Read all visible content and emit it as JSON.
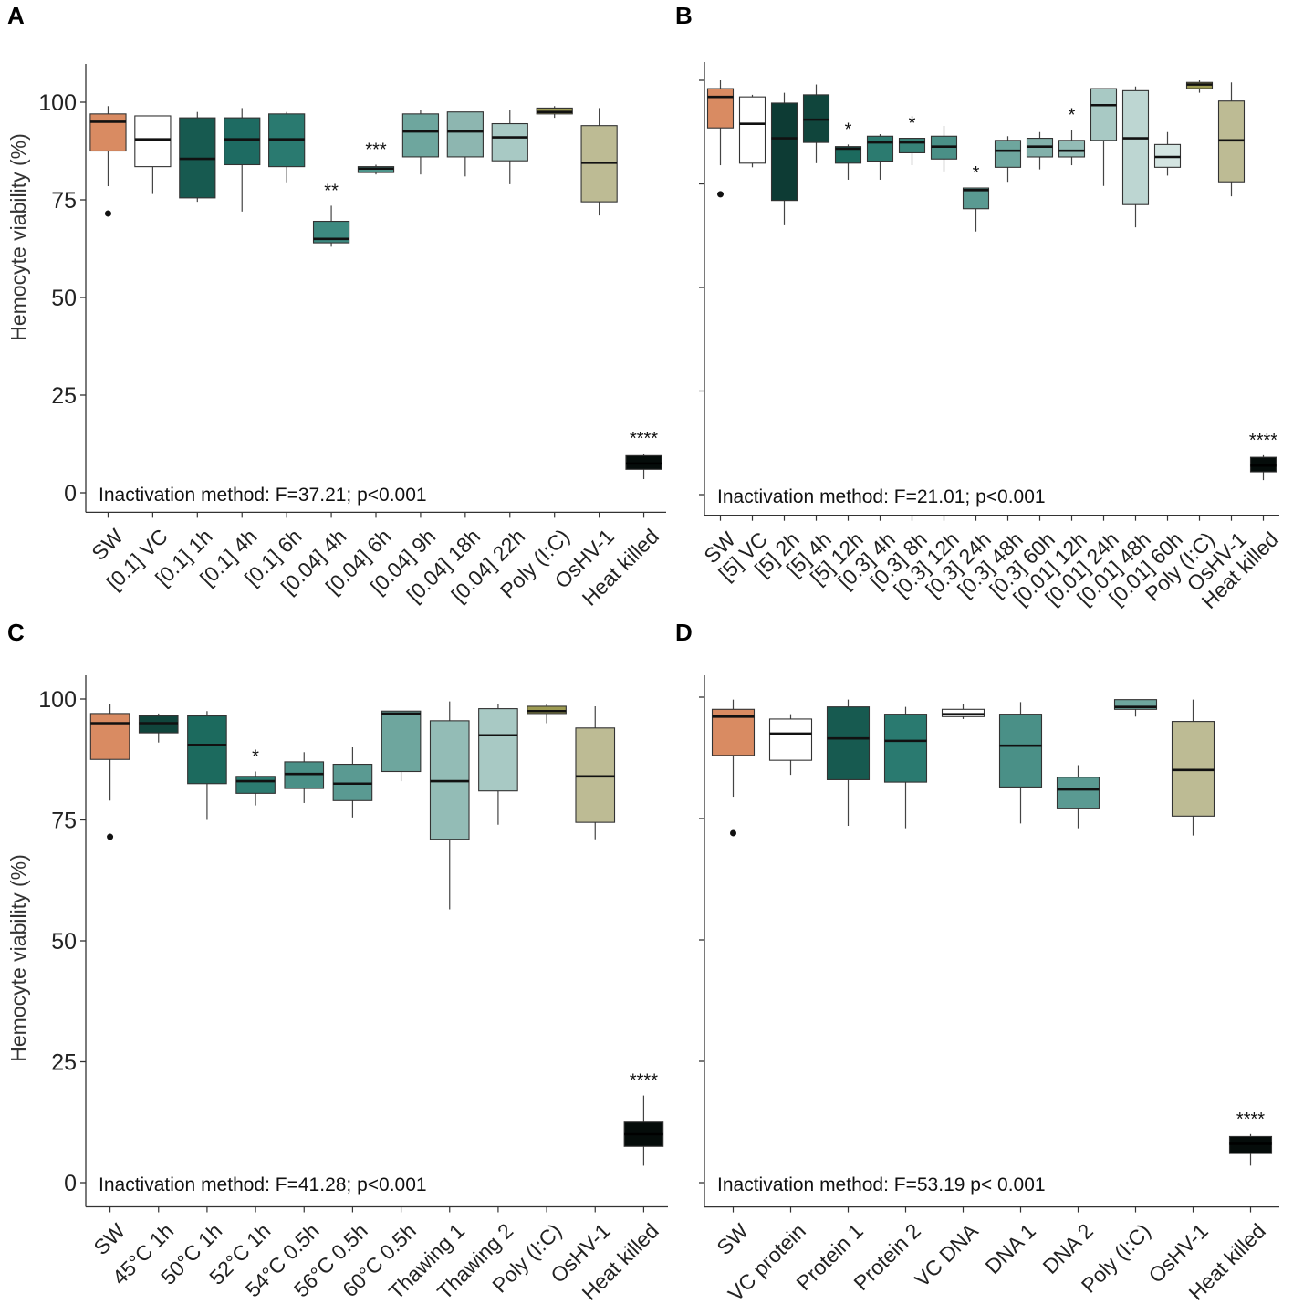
{
  "chart_data": [
    {
      "panel": "A",
      "type": "box",
      "ylabel": "Hemocyte viability (%)",
      "ylim": [
        0,
        105
      ],
      "yticks": [
        0,
        25,
        50,
        75,
        100
      ],
      "annotation": "Inactivation method: F=37.21; p<0.001",
      "boxes": [
        {
          "label": "SW",
          "color": "#d98b62",
          "min": 78.5,
          "q1": 87.5,
          "median": 95,
          "q3": 97,
          "max": 99,
          "outliers": [
            71.5
          ],
          "sig": ""
        },
        {
          "label": "[0.1] VC",
          "color": "#ffffff",
          "min": 76.5,
          "q1": 83.5,
          "median": 90.5,
          "q3": 96.5,
          "max": 96.5,
          "outliers": [],
          "sig": ""
        },
        {
          "label": "[0.1] 1h",
          "color": "#175a50",
          "min": 74.5,
          "q1": 75.5,
          "median": 85.5,
          "q3": 96,
          "max": 97.5,
          "outliers": [],
          "sig": ""
        },
        {
          "label": "[0.1] 4h",
          "color": "#1e6b62",
          "min": 72,
          "q1": 84,
          "median": 90.5,
          "q3": 96,
          "max": 98.5,
          "outliers": [],
          "sig": ""
        },
        {
          "label": "[0.1] 6h",
          "color": "#2a7a70",
          "min": 79.5,
          "q1": 83.5,
          "median": 90.5,
          "q3": 97,
          "max": 97.5,
          "outliers": [],
          "sig": ""
        },
        {
          "label": "[0.04] 4h",
          "color": "#3d8a80",
          "min": 63,
          "q1": 64,
          "median": 65,
          "q3": 69.5,
          "max": 73.5,
          "outliers": [],
          "sig": "**"
        },
        {
          "label": "[0.04] 6h",
          "color": "#4e958b",
          "min": 81.5,
          "q1": 82,
          "median": 83,
          "q3": 83.5,
          "max": 84,
          "outliers": [],
          "sig": "***"
        },
        {
          "label": "[0.04] 9h",
          "color": "#6ea69e",
          "min": 81.5,
          "q1": 86,
          "median": 92.5,
          "q3": 97,
          "max": 98,
          "outliers": [],
          "sig": ""
        },
        {
          "label": "[0.04] 18h",
          "color": "#8db6b0",
          "min": 81,
          "q1": 86,
          "median": 92.5,
          "q3": 97.5,
          "max": 97.5,
          "outliers": [],
          "sig": ""
        },
        {
          "label": "[0.04] 22h",
          "color": "#a8c9c4",
          "min": 79,
          "q1": 85,
          "median": 91,
          "q3": 94.5,
          "max": 98,
          "outliers": [],
          "sig": ""
        },
        {
          "label": "Poly (I:C)",
          "color": "#9c9a52",
          "min": 96,
          "q1": 97,
          "median": 97.5,
          "q3": 98.5,
          "max": 99,
          "outliers": [],
          "sig": ""
        },
        {
          "label": "OsHV-1",
          "color": "#bdbb94",
          "min": 71,
          "q1": 74.5,
          "median": 84.5,
          "q3": 94,
          "max": 98.5,
          "outliers": [],
          "sig": ""
        },
        {
          "label": "Heat killed",
          "color": "#050c0a",
          "min": 3.5,
          "q1": 6,
          "median": 7.5,
          "q3": 9.5,
          "max": 10,
          "outliers": [],
          "sig": "****"
        }
      ]
    },
    {
      "panel": "B",
      "type": "box",
      "ylabel": "",
      "ylim": [
        0,
        105
      ],
      "yticks": [
        0,
        25,
        50,
        75,
        100
      ],
      "annotation": "Inactivation method: F=21.01; p<0.001",
      "boxes": [
        {
          "label": "SW",
          "color": "#d98b62",
          "min": 79.5,
          "q1": 88.5,
          "median": 96,
          "q3": 98,
          "max": 100,
          "outliers": [
            72.5
          ],
          "sig": ""
        },
        {
          "label": "[5] VC",
          "color": "#ffffff",
          "min": 79,
          "q1": 80,
          "median": 89.5,
          "q3": 96,
          "max": 96.5,
          "outliers": [],
          "sig": ""
        },
        {
          "label": "[5] 2h",
          "color": "#0d3b34",
          "min": 65,
          "q1": 71,
          "median": 86,
          "q3": 94.5,
          "max": 97,
          "outliers": [],
          "sig": ""
        },
        {
          "label": "[5] 4h",
          "color": "#10453c",
          "min": 80,
          "q1": 85,
          "median": 90.5,
          "q3": 96.5,
          "max": 99,
          "outliers": [],
          "sig": ""
        },
        {
          "label": "[5] 12h",
          "color": "#1c6a5e",
          "min": 76,
          "q1": 80,
          "median": 83.5,
          "q3": 84,
          "max": 84.5,
          "outliers": [],
          "sig": "*"
        },
        {
          "label": "[0.3] 4h",
          "color": "#2c7b70",
          "min": 76,
          "q1": 80.5,
          "median": 85,
          "q3": 86.5,
          "max": 87,
          "outliers": [],
          "sig": ""
        },
        {
          "label": "[0.3] 8h",
          "color": "#378378",
          "min": 79.5,
          "q1": 82.5,
          "median": 85,
          "q3": 86,
          "max": 86,
          "outliers": [],
          "sig": "*"
        },
        {
          "label": "[0.3] 12h",
          "color": "#4a9087",
          "min": 78,
          "q1": 81,
          "median": 84,
          "q3": 86.5,
          "max": 89,
          "outliers": [],
          "sig": ""
        },
        {
          "label": "[0.3] 24h",
          "color": "#5a9a92",
          "min": 63.5,
          "q1": 69,
          "median": 73.5,
          "q3": 74,
          "max": 74,
          "outliers": [],
          "sig": "*"
        },
        {
          "label": "[0.3] 48h",
          "color": "#6ea69e",
          "min": 75.5,
          "q1": 79,
          "median": 83,
          "q3": 85.5,
          "max": 86.5,
          "outliers": [],
          "sig": ""
        },
        {
          "label": "[0.3] 60h",
          "color": "#82b0aa",
          "min": 78.5,
          "q1": 81.5,
          "median": 84,
          "q3": 86,
          "max": 87.5,
          "outliers": [],
          "sig": ""
        },
        {
          "label": "[0.01] 12h",
          "color": "#93bcb6",
          "min": 79.5,
          "q1": 81.5,
          "median": 83,
          "q3": 85.5,
          "max": 88,
          "outliers": [],
          "sig": "*"
        },
        {
          "label": "[0.01] 24h",
          "color": "#a8c9c4",
          "min": 74.5,
          "q1": 85.5,
          "median": 94,
          "q3": 98,
          "max": 98,
          "outliers": [],
          "sig": ""
        },
        {
          "label": "[0.01] 48h",
          "color": "#bdd6d2",
          "min": 64.5,
          "q1": 70,
          "median": 86,
          "q3": 97.5,
          "max": 98.5,
          "outliers": [],
          "sig": ""
        },
        {
          "label": "[0.01] 60h",
          "color": "#d4e5e2",
          "min": 77,
          "q1": 79,
          "median": 81.5,
          "q3": 84.5,
          "max": 87.5,
          "outliers": [],
          "sig": ""
        },
        {
          "label": "Poly (I:C)",
          "color": "#9c9a52",
          "min": 97,
          "q1": 98,
          "median": 99,
          "q3": 99.5,
          "max": 100,
          "outliers": [],
          "sig": ""
        },
        {
          "label": "OsHV-1",
          "color": "#bdbb94",
          "min": 72,
          "q1": 75.5,
          "median": 85.5,
          "q3": 95,
          "max": 99.5,
          "outliers": [],
          "sig": ""
        },
        {
          "label": "Heat killed",
          "color": "#050c0a",
          "min": 3.5,
          "q1": 5.5,
          "median": 7,
          "q3": 9,
          "max": 9.5,
          "outliers": [],
          "sig": "****"
        }
      ]
    },
    {
      "panel": "C",
      "type": "box",
      "ylabel": "Hemocyte viability (%)",
      "ylim": [
        0,
        105
      ],
      "yticks": [
        0,
        25,
        50,
        75,
        100
      ],
      "annotation": "Inactivation method: F=41.28; p<0.001",
      "boxes": [
        {
          "label": "SW",
          "color": "#d98b62",
          "min": 79,
          "q1": 87.5,
          "median": 95,
          "q3": 97,
          "max": 99,
          "outliers": [
            71.5
          ],
          "sig": ""
        },
        {
          "label": "45°C 1h",
          "color": "#10453c",
          "min": 91,
          "q1": 93,
          "median": 95,
          "q3": 96.5,
          "max": 97,
          "outliers": [],
          "sig": ""
        },
        {
          "label": "50°C 1h",
          "color": "#1c6a5e",
          "min": 75,
          "q1": 82.5,
          "median": 90.5,
          "q3": 96.5,
          "max": 97.5,
          "outliers": [],
          "sig": ""
        },
        {
          "label": "52°C 1h",
          "color": "#2c7b70",
          "min": 78,
          "q1": 80.5,
          "median": 83,
          "q3": 84,
          "max": 85,
          "outliers": [],
          "sig": "*"
        },
        {
          "label": "54°C 0.5h",
          "color": "#4a9087",
          "min": 78.5,
          "q1": 81.5,
          "median": 84.5,
          "q3": 87,
          "max": 89,
          "outliers": [],
          "sig": ""
        },
        {
          "label": "56°C 0.5h",
          "color": "#5a9a92",
          "min": 75.5,
          "q1": 79,
          "median": 82.5,
          "q3": 86.5,
          "max": 90,
          "outliers": [],
          "sig": ""
        },
        {
          "label": "60°C 0.5h",
          "color": "#6ea69e",
          "min": 83,
          "q1": 85,
          "median": 97,
          "q3": 97.5,
          "max": 97.5,
          "outliers": [],
          "sig": ""
        },
        {
          "label": "Thawing 1",
          "color": "#93bcb6",
          "min": 56.5,
          "q1": 71,
          "median": 83,
          "q3": 95.5,
          "max": 99.5,
          "outliers": [],
          "sig": ""
        },
        {
          "label": "Thawing 2",
          "color": "#a8c9c4",
          "min": 74,
          "q1": 81,
          "median": 92.5,
          "q3": 98,
          "max": 99,
          "outliers": [],
          "sig": ""
        },
        {
          "label": "Poly (I:C)",
          "color": "#9c9a52",
          "min": 95,
          "q1": 97,
          "median": 97.5,
          "q3": 98.5,
          "max": 99,
          "outliers": [],
          "sig": ""
        },
        {
          "label": "OsHV-1",
          "color": "#bdbb94",
          "min": 71,
          "q1": 74.5,
          "median": 84,
          "q3": 94,
          "max": 98.5,
          "outliers": [],
          "sig": ""
        },
        {
          "label": "Heat killed",
          "color": "#050c0a",
          "min": 3.5,
          "q1": 7.5,
          "median": 10,
          "q3": 12.5,
          "max": 18,
          "outliers": [],
          "sig": "****"
        }
      ]
    },
    {
      "panel": "D",
      "type": "box",
      "ylabel": "",
      "ylim": [
        0,
        105
      ],
      "yticks": [
        0,
        25,
        50,
        75,
        100
      ],
      "annotation": "Inactivation method: F=53.19 p< 0.001",
      "boxes": [
        {
          "label": "SW",
          "color": "#d98b62",
          "min": 79.5,
          "q1": 88,
          "median": 96,
          "q3": 97.5,
          "max": 99.5,
          "outliers": [
            72
          ],
          "sig": ""
        },
        {
          "label": "VC protein",
          "color": "#ffffff",
          "min": 84,
          "q1": 87,
          "median": 92.5,
          "q3": 95.5,
          "max": 96.5,
          "outliers": [],
          "sig": ""
        },
        {
          "label": "Protein 1",
          "color": "#175a50",
          "min": 73.5,
          "q1": 83,
          "median": 91.5,
          "q3": 98,
          "max": 99.5,
          "outliers": [],
          "sig": ""
        },
        {
          "label": "Protein 2",
          "color": "#2a7a70",
          "min": 73,
          "q1": 82.5,
          "median": 91,
          "q3": 96.5,
          "max": 98,
          "outliers": [],
          "sig": ""
        },
        {
          "label": "VC DNA",
          "color": "#ffffff",
          "min": 95.5,
          "q1": 96,
          "median": 96.5,
          "q3": 97.5,
          "max": 98.5,
          "outliers": [],
          "sig": ""
        },
        {
          "label": "DNA 1",
          "color": "#4a9087",
          "min": 74,
          "q1": 81.5,
          "median": 90,
          "q3": 96.5,
          "max": 99,
          "outliers": [],
          "sig": ""
        },
        {
          "label": "DNA 2",
          "color": "#5a9a92",
          "min": 73,
          "q1": 77,
          "median": 81,
          "q3": 83.5,
          "max": 86,
          "outliers": [],
          "sig": ""
        },
        {
          "label": "Poly (I:C)",
          "color": "#6ea69e",
          "min": 96,
          "q1": 97.5,
          "median": 98,
          "q3": 99.5,
          "max": 99.5,
          "outliers": [],
          "sig": ""
        },
        {
          "label": "OsHV-1",
          "color": "#bdbb94",
          "min": 71.5,
          "q1": 75.5,
          "median": 85,
          "q3": 95,
          "max": 99.5,
          "outliers": [],
          "sig": ""
        },
        {
          "label": "Heat killed",
          "color": "#050c0a",
          "min": 3.5,
          "q1": 6,
          "median": 8,
          "q3": 9.5,
          "max": 10,
          "outliers": [],
          "sig": "****"
        }
      ]
    }
  ]
}
